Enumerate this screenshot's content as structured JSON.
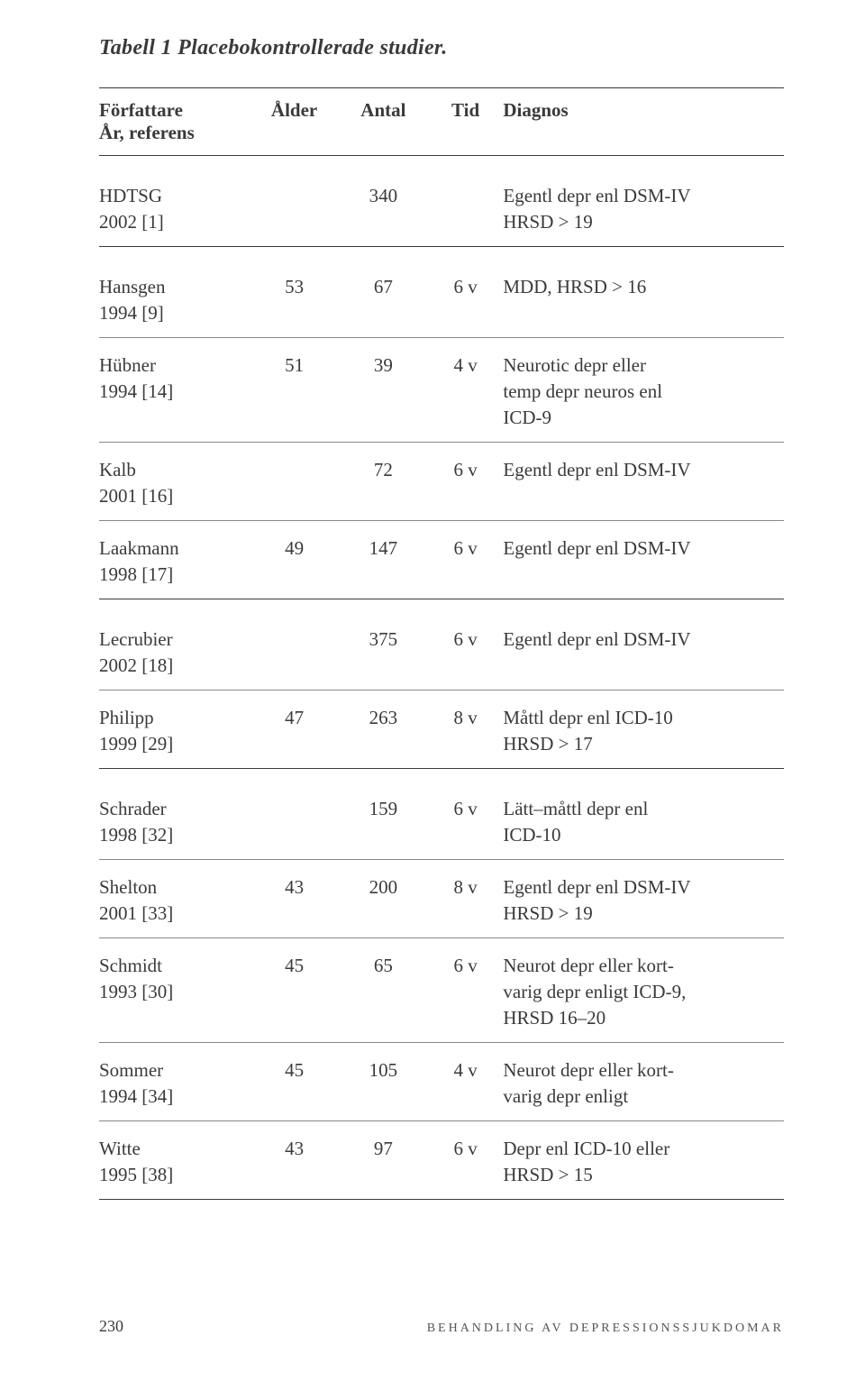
{
  "title_prefix": "Tabell 1",
  "title_rest": "Placebokontrollerade studier.",
  "headers": {
    "author": "Författare",
    "author_sub": "År, referens",
    "alder": "Ålder",
    "antal": "Antal",
    "tid": "Tid",
    "diagnos": "Diagnos"
  },
  "rows": [
    {
      "auth1": "HDTSG",
      "auth2": "2002 [1]",
      "alder": "",
      "antal": "340",
      "tid": "",
      "diag1": "Egentl depr enl DSM-IV",
      "diag2": "HRSD > 19",
      "diag3": "",
      "group_start": true,
      "sep": "thick"
    },
    {
      "auth1": "Hansgen",
      "auth2": "1994 [9]",
      "alder": "53",
      "antal": "67",
      "tid": "6 v",
      "diag1": "MDD, HRSD > 16",
      "diag2": "",
      "diag3": "",
      "group_start": true,
      "sep": "thin"
    },
    {
      "auth1": "Hübner",
      "auth2": "1994 [14]",
      "alder": "51",
      "antal": "39",
      "tid": "4 v",
      "diag1": "Neurotic depr eller",
      "diag2": "temp depr neuros enl",
      "diag3": "ICD-9",
      "group_start": false,
      "sep": "thin"
    },
    {
      "auth1": "Kalb",
      "auth2": "2001 [16]",
      "alder": "",
      "antal": "72",
      "tid": "6 v",
      "diag1": "Egentl depr enl DSM-IV",
      "diag2": "",
      "diag3": "",
      "group_start": false,
      "sep": "thin"
    },
    {
      "auth1": "Laakmann",
      "auth2": "1998 [17]",
      "alder": "49",
      "antal": "147",
      "tid": "6 v",
      "diag1": "Egentl depr enl DSM-IV",
      "diag2": "",
      "diag3": "",
      "group_start": false,
      "sep": "thick"
    },
    {
      "auth1": "Lecrubier",
      "auth2": "2002 [18]",
      "alder": "",
      "antal": "375",
      "tid": "6 v",
      "diag1": "Egentl depr enl DSM-IV",
      "diag2": "",
      "diag3": "",
      "group_start": true,
      "sep": "thin"
    },
    {
      "auth1": "Philipp",
      "auth2": "1999 [29]",
      "alder": "47",
      "antal": "263",
      "tid": "8 v",
      "diag1": "Måttl depr enl ICD-10",
      "diag2": "HRSD > 17",
      "diag3": "",
      "group_start": false,
      "sep": "thick"
    },
    {
      "auth1": "Schrader",
      "auth2": "1998 [32]",
      "alder": "",
      "antal": "159",
      "tid": "6 v",
      "diag1": "Lätt–måttl depr enl",
      "diag2": "ICD-10",
      "diag3": "",
      "group_start": true,
      "sep": "thin"
    },
    {
      "auth1": "Shelton",
      "auth2": "2001 [33]",
      "alder": "43",
      "antal": "200",
      "tid": "8 v",
      "diag1": "Egentl depr enl DSM-IV",
      "diag2": "HRSD > 19",
      "diag3": "",
      "group_start": false,
      "sep": "thin"
    },
    {
      "auth1": "Schmidt",
      "auth2": "1993 [30]",
      "alder": "45",
      "antal": "65",
      "tid": "6 v",
      "diag1": "Neurot depr eller kort-",
      "diag2": "varig depr enligt ICD-9,",
      "diag3": "HRSD 16–20",
      "group_start": false,
      "sep": "thin"
    },
    {
      "auth1": "Sommer",
      "auth2": "1994 [34]",
      "alder": "45",
      "antal": "105",
      "tid": "4 v",
      "diag1": "Neurot depr eller kort-",
      "diag2": "varig depr enligt",
      "diag3": "",
      "group_start": false,
      "sep": "thin"
    },
    {
      "auth1": "Witte",
      "auth2": "1995 [38]",
      "alder": "43",
      "antal": "97",
      "tid": "6 v",
      "diag1": "Depr enl ICD-10 eller",
      "diag2": "HRSD > 15",
      "diag3": "",
      "group_start": false,
      "sep": "thick"
    }
  ],
  "footer": {
    "page": "230",
    "text": "BEHANDLING AV DEPRESSIONSSJUKDOMAR"
  },
  "colors": {
    "text": "#3a3a3a",
    "rule": "#3a3a3a",
    "thin_rule": "#888888",
    "background": "#ffffff"
  }
}
